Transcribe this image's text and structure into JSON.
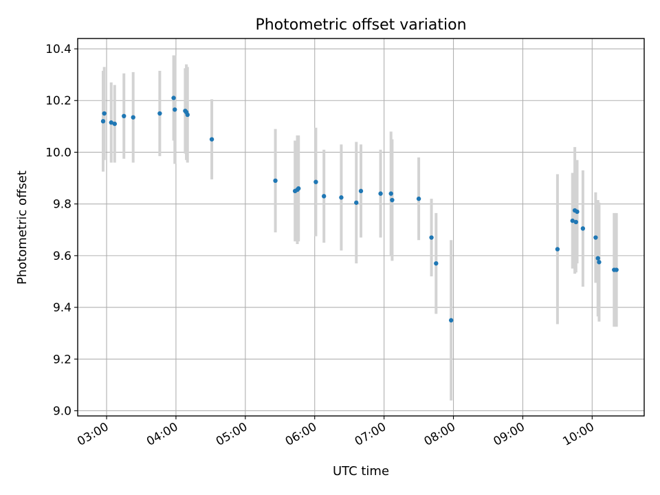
{
  "chart_data": {
    "type": "scatter",
    "title": "Photometric offset variation",
    "xlabel": "UTC time",
    "ylabel": "Photometric offset",
    "xlim": [
      "02:35",
      "10:45"
    ],
    "ylim": [
      8.98,
      10.44
    ],
    "x_ticks": [
      "03:00",
      "04:00",
      "05:00",
      "06:00",
      "07:00",
      "08:00",
      "09:00",
      "10:00"
    ],
    "y_ticks": [
      9.0,
      9.2,
      9.4,
      9.6,
      9.8,
      10.0,
      10.2,
      10.4
    ],
    "y_tick_labels": [
      "9.0",
      "9.2",
      "9.4",
      "9.6",
      "9.8",
      "10.0",
      "10.2",
      "10.4"
    ],
    "grid": true,
    "colors": {
      "point": "#1f77b4",
      "errorbar": "#d3d3d3"
    },
    "points": [
      {
        "t": "02:57",
        "y": 10.12,
        "err": 0.195
      },
      {
        "t": "02:58",
        "y": 10.15,
        "err": 0.18
      },
      {
        "t": "03:04",
        "y": 10.115,
        "err": 0.155
      },
      {
        "t": "03:07",
        "y": 10.11,
        "err": 0.15
      },
      {
        "t": "03:15",
        "y": 10.14,
        "err": 0.165
      },
      {
        "t": "03:23",
        "y": 10.135,
        "err": 0.175
      },
      {
        "t": "03:46",
        "y": 10.15,
        "err": 0.165
      },
      {
        "t": "03:58",
        "y": 10.21,
        "err": 0.165
      },
      {
        "t": "03:59",
        "y": 10.165,
        "err": 0.21
      },
      {
        "t": "04:08",
        "y": 10.16,
        "err": 0.165
      },
      {
        "t": "04:09",
        "y": 10.155,
        "err": 0.185
      },
      {
        "t": "04:10",
        "y": 10.145,
        "err": 0.185
      },
      {
        "t": "04:31",
        "y": 10.05,
        "err": 0.155
      },
      {
        "t": "05:26",
        "y": 9.89,
        "err": 0.2
      },
      {
        "t": "05:43",
        "y": 9.85,
        "err": 0.195
      },
      {
        "t": "05:45",
        "y": 9.855,
        "err": 0.21
      },
      {
        "t": "05:46",
        "y": 9.86,
        "err": 0.205
      },
      {
        "t": "06:01",
        "y": 9.885,
        "err": 0.21
      },
      {
        "t": "06:08",
        "y": 9.83,
        "err": 0.18
      },
      {
        "t": "06:23",
        "y": 9.825,
        "err": 0.205
      },
      {
        "t": "06:36",
        "y": 9.805,
        "err": 0.235
      },
      {
        "t": "06:40",
        "y": 9.85,
        "err": 0.18
      },
      {
        "t": "06:57",
        "y": 9.84,
        "err": 0.17
      },
      {
        "t": "07:06",
        "y": 9.84,
        "err": 0.24
      },
      {
        "t": "07:07",
        "y": 9.815,
        "err": 0.235
      },
      {
        "t": "07:30",
        "y": 9.82,
        "err": 0.16
      },
      {
        "t": "07:41",
        "y": 9.67,
        "err": 0.15
      },
      {
        "t": "07:45",
        "y": 9.57,
        "err": 0.195
      },
      {
        "t": "07:58",
        "y": 9.35,
        "err": 0.31
      },
      {
        "t": "09:30",
        "y": 9.625,
        "err": 0.29
      },
      {
        "t": "09:43",
        "y": 9.735,
        "err": 0.185
      },
      {
        "t": "09:45",
        "y": 9.775,
        "err": 0.245
      },
      {
        "t": "09:46",
        "y": 9.73,
        "err": 0.195
      },
      {
        "t": "09:47",
        "y": 9.77,
        "err": 0.2
      },
      {
        "t": "09:52",
        "y": 9.705,
        "err": 0.225
      },
      {
        "t": "10:03",
        "y": 9.67,
        "err": 0.175
      },
      {
        "t": "10:05",
        "y": 9.59,
        "err": 0.225
      },
      {
        "t": "10:06",
        "y": 9.575,
        "err": 0.23
      },
      {
        "t": "10:19",
        "y": 9.545,
        "err": 0.22
      },
      {
        "t": "10:21",
        "y": 9.545,
        "err": 0.22
      }
    ]
  }
}
